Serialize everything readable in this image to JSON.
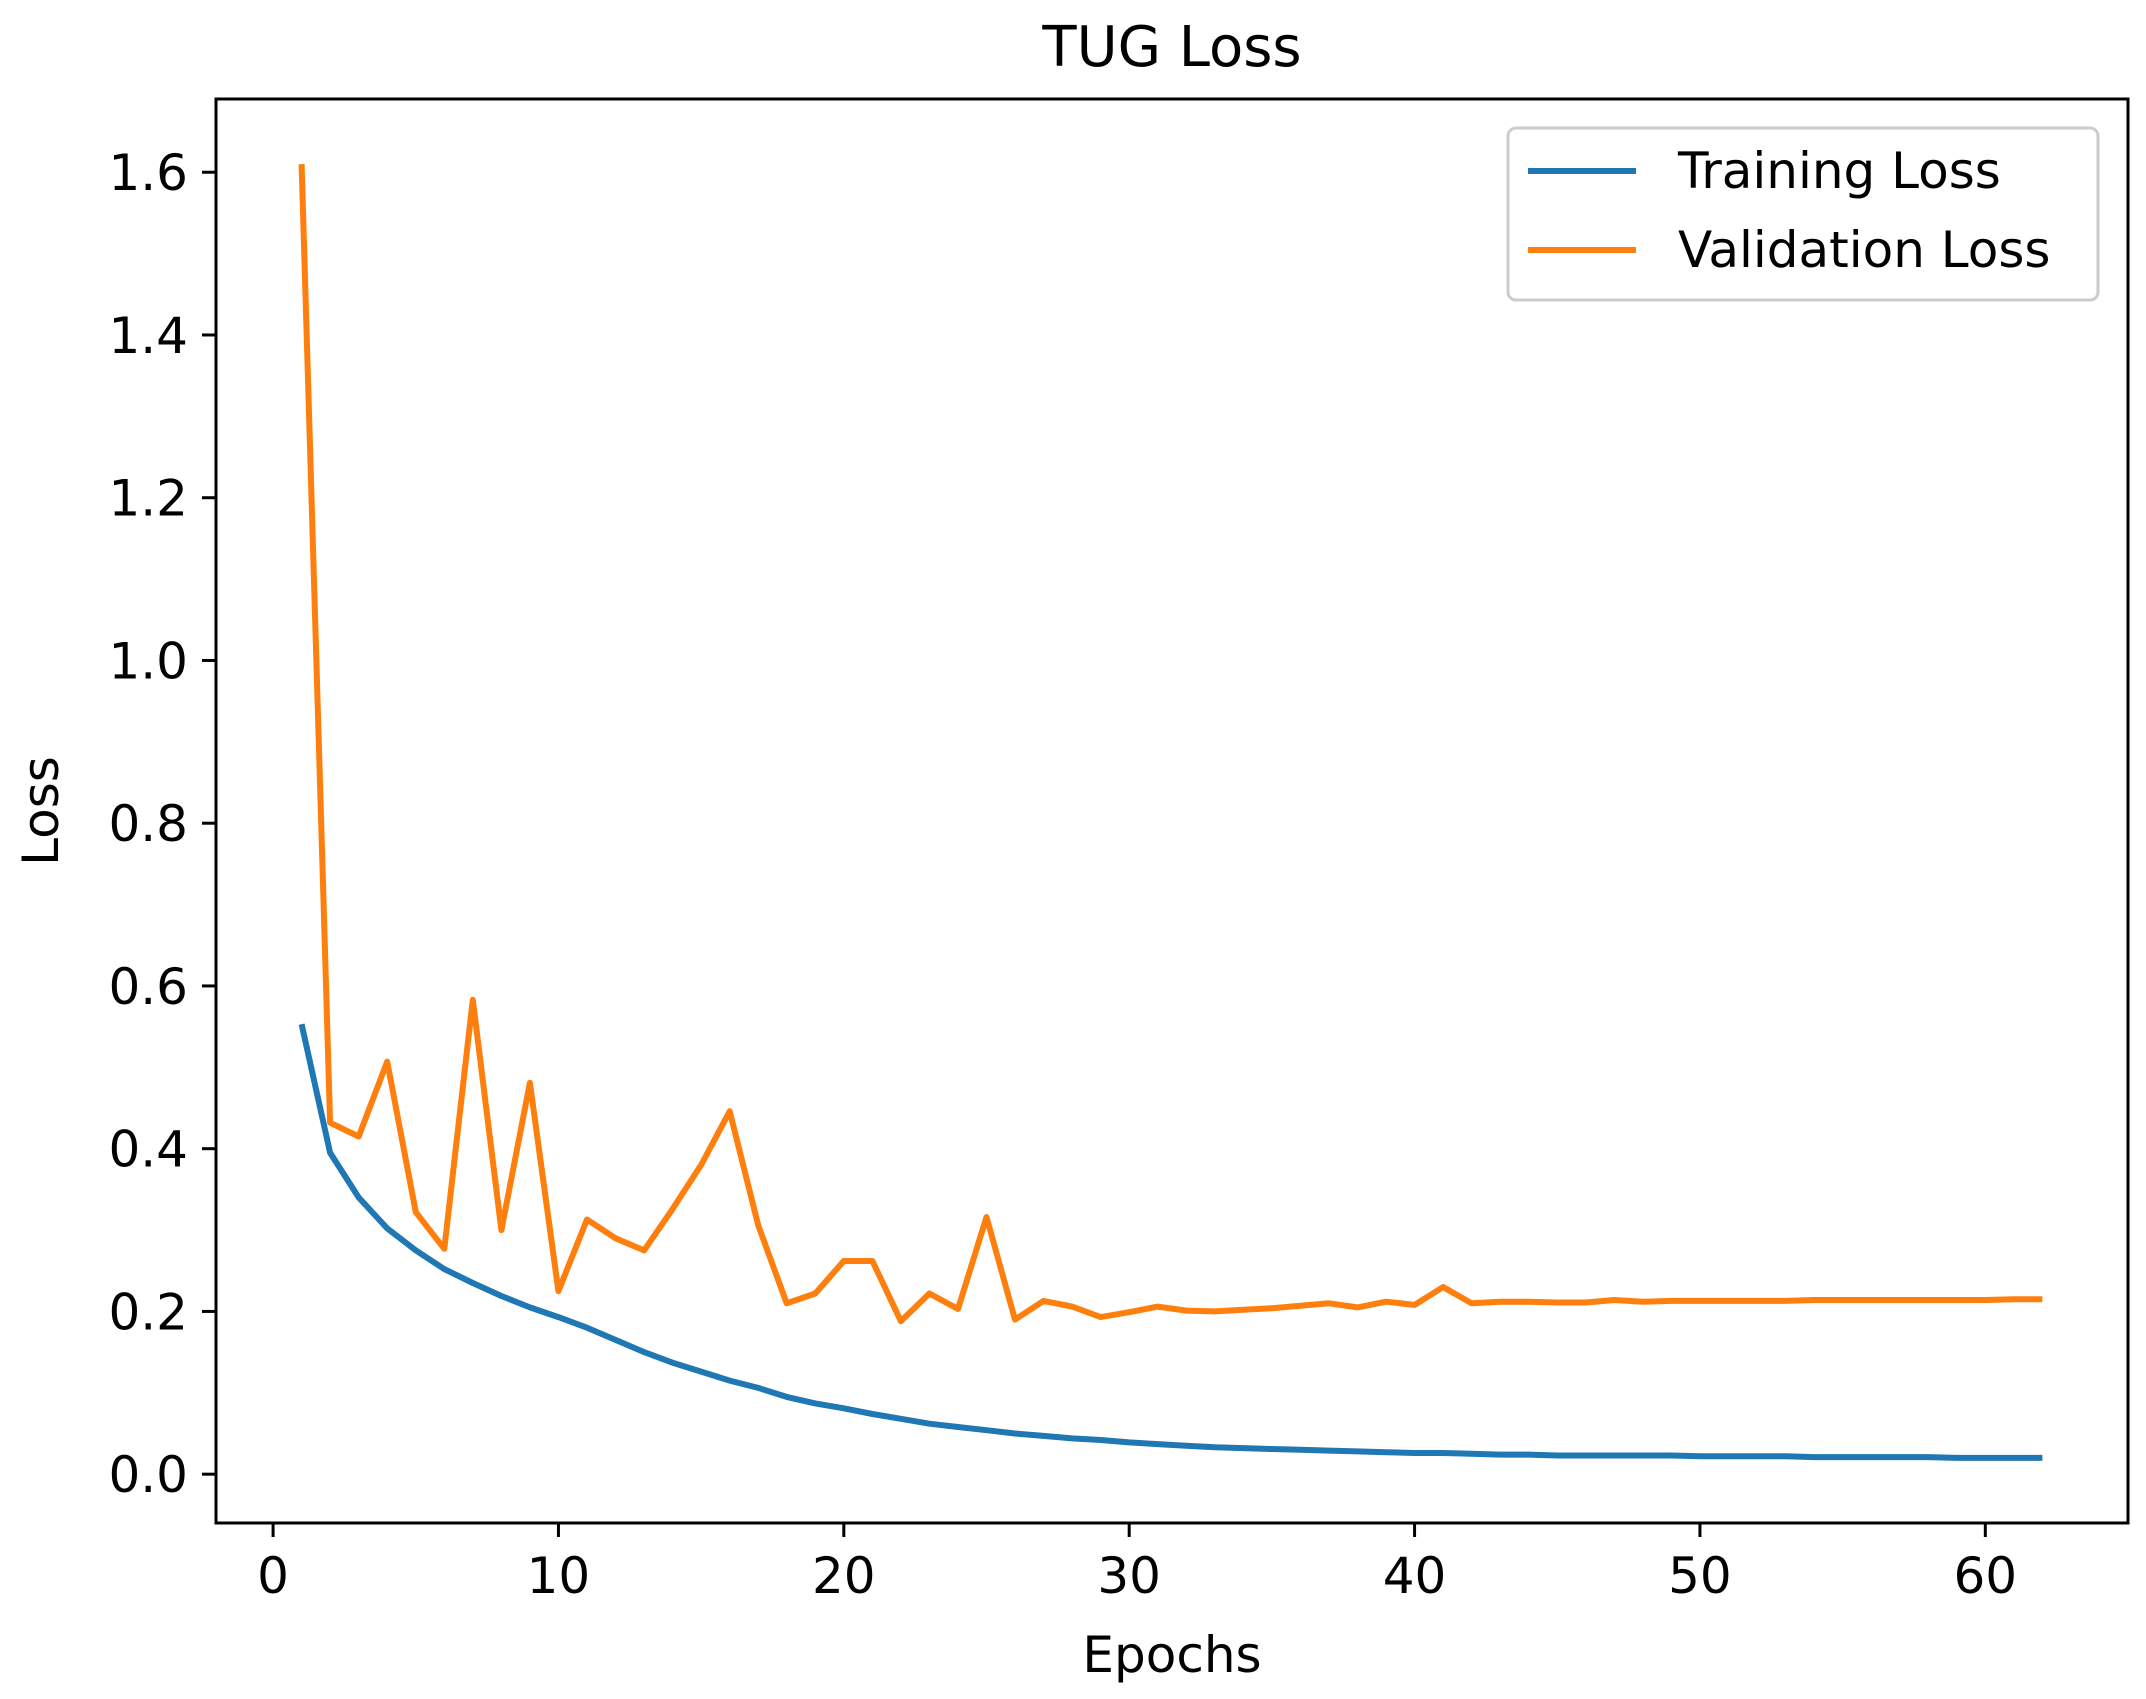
{
  "chart_data": {
    "type": "line",
    "title": "TUG Loss",
    "xlabel": "Epochs",
    "ylabel": "Loss",
    "xlim": [
      -2,
      65
    ],
    "ylim": [
      -0.06,
      1.69
    ],
    "xticks": [
      0,
      10,
      20,
      30,
      40,
      50,
      60
    ],
    "yticks": [
      0.0,
      0.2,
      0.4,
      0.6,
      0.8,
      1.0,
      1.2,
      1.4,
      1.6
    ],
    "ytick_labels": [
      "0.0",
      "0.2",
      "0.4",
      "0.6",
      "0.8",
      "1.0",
      "1.2",
      "1.4",
      "1.6"
    ],
    "grid": false,
    "legend_position": "top-right",
    "x": [
      1,
      2,
      3,
      4,
      5,
      6,
      7,
      8,
      9,
      10,
      11,
      12,
      13,
      14,
      15,
      16,
      17,
      18,
      19,
      20,
      21,
      22,
      23,
      24,
      25,
      26,
      27,
      28,
      29,
      30,
      31,
      32,
      33,
      34,
      35,
      36,
      37,
      38,
      39,
      40,
      41,
      42,
      43,
      44,
      45,
      46,
      47,
      48,
      49,
      50,
      51,
      52,
      53,
      54,
      55,
      56,
      57,
      58,
      59,
      60,
      61,
      62
    ],
    "series": [
      {
        "name": "Training Loss",
        "color": "#1f77b4",
        "values": [
          0.553,
          0.395,
          0.34,
          0.302,
          0.275,
          0.252,
          0.235,
          0.219,
          0.205,
          0.193,
          0.18,
          0.165,
          0.15,
          0.137,
          0.126,
          0.115,
          0.106,
          0.095,
          0.087,
          0.081,
          0.074,
          0.068,
          0.062,
          0.058,
          0.054,
          0.05,
          0.047,
          0.044,
          0.042,
          0.039,
          0.037,
          0.035,
          0.033,
          0.032,
          0.031,
          0.03,
          0.029,
          0.028,
          0.027,
          0.026,
          0.026,
          0.025,
          0.024,
          0.024,
          0.023,
          0.023,
          0.023,
          0.023,
          0.023,
          0.022,
          0.022,
          0.022,
          0.022,
          0.021,
          0.021,
          0.021,
          0.021,
          0.021,
          0.02,
          0.02,
          0.02,
          0.02
        ]
      },
      {
        "name": "Validation Loss",
        "color": "#ff7f0e",
        "values": [
          1.61,
          0.432,
          0.415,
          0.507,
          0.322,
          0.277,
          0.583,
          0.3,
          0.481,
          0.225,
          0.313,
          0.29,
          0.275,
          0.326,
          0.38,
          0.446,
          0.306,
          0.21,
          0.222,
          0.262,
          0.262,
          0.188,
          0.222,
          0.203,
          0.316,
          0.19,
          0.213,
          0.206,
          0.193,
          0.199,
          0.206,
          0.201,
          0.2,
          0.202,
          0.204,
          0.207,
          0.21,
          0.205,
          0.212,
          0.208,
          0.23,
          0.21,
          0.212,
          0.212,
          0.211,
          0.211,
          0.214,
          0.212,
          0.213,
          0.213,
          0.213,
          0.213,
          0.213,
          0.214,
          0.214,
          0.214,
          0.214,
          0.214,
          0.214,
          0.214,
          0.215,
          0.215
        ]
      }
    ]
  }
}
